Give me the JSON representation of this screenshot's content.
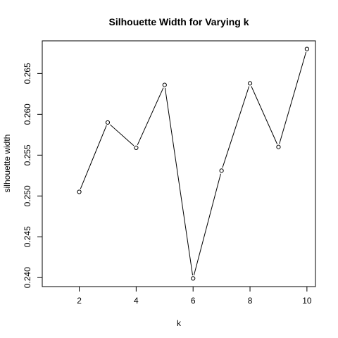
{
  "chart_data": {
    "type": "line",
    "title": "Silhouette Width for Varying k",
    "xlabel": "k",
    "ylabel": "silhouette width",
    "x": [
      2,
      3,
      4,
      5,
      6,
      7,
      8,
      9,
      10
    ],
    "y": [
      0.2505,
      0.259,
      0.2559,
      0.2636,
      0.2399,
      0.2531,
      0.2638,
      0.256,
      0.268
    ],
    "xlim": [
      0.7,
      10.3
    ],
    "ylim": [
      0.2389,
      0.269
    ],
    "x_ticks": [
      2,
      4,
      6,
      8,
      10
    ],
    "x_tick_labels": [
      "2",
      "4",
      "6",
      "8",
      "10"
    ],
    "y_ticks": [
      0.24,
      0.245,
      0.25,
      0.255,
      0.26,
      0.265
    ],
    "y_tick_labels": [
      "0.240",
      "0.245",
      "0.250",
      "0.255",
      "0.260",
      "0.265"
    ],
    "grid": false,
    "markers": "open-circle",
    "line_color": "#000000"
  }
}
